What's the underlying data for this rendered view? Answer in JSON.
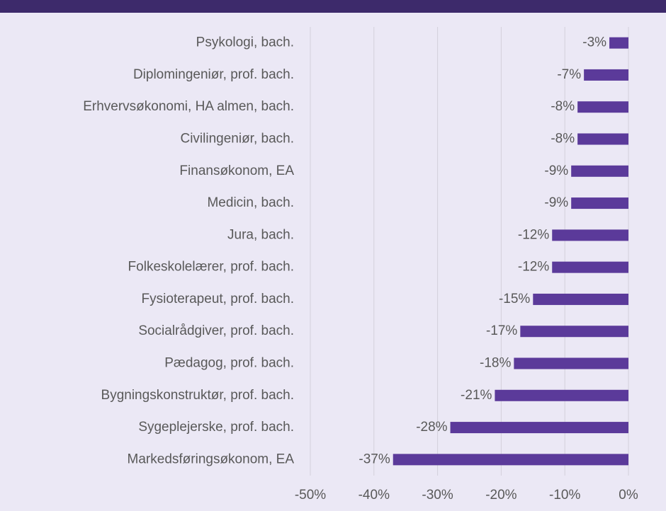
{
  "chart_data": {
    "type": "barh",
    "categories": [
      "Psykologi, bach.",
      "Diplomingeniør, prof. bach.",
      "Erhvervsøkonomi, HA almen, bach.",
      "Civilingeniør, bach.",
      "Finansøkonom, EA",
      "Medicin, bach.",
      "Jura, bach.",
      "Folkeskolelærer, prof. bach.",
      "Fysioterapeut, prof. bach.",
      "Socialrådgiver, prof. bach.",
      "Pædagog, prof. bach.",
      "Bygningskonstruktør, prof. bach.",
      "Sygeplejerske, prof. bach.",
      "Markedsføringsøkonom, EA"
    ],
    "values": [
      -3,
      -7,
      -8,
      -8,
      -9,
      -9,
      -12,
      -12,
      -15,
      -17,
      -18,
      -21,
      -28,
      -37
    ],
    "value_labels": [
      "-3%",
      "-7%",
      "-8%",
      "-8%",
      "-9%",
      "-9%",
      "-12%",
      "-12%",
      "-15%",
      "-17%",
      "-18%",
      "-21%",
      "-28%",
      "-37%"
    ],
    "color": "#5b3a9a",
    "xlim": [
      -50,
      0
    ],
    "xticks": [
      {
        "value": -50,
        "label": "-50%"
      },
      {
        "value": -40,
        "label": "-40%"
      },
      {
        "value": -30,
        "label": "-30%"
      },
      {
        "value": -20,
        "label": "-20%"
      },
      {
        "value": -10,
        "label": "-10%"
      },
      {
        "value": 0,
        "label": "0%"
      }
    ],
    "grid": true
  }
}
